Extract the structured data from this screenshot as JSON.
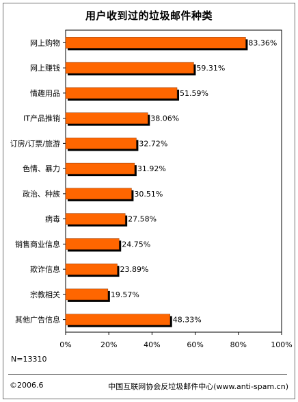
{
  "footer": {
    "sample": "N=13310",
    "copyright": "©2006.6",
    "source": "中国互联网协会反垃圾邮件中心(www.anti-spam.cn)"
  },
  "chart_data": {
    "type": "bar",
    "orientation": "horizontal",
    "title": "用户收到过的垃圾邮件种类",
    "categories": [
      "网上购物",
      "网上赚钱",
      "情趣用品",
      "IT产品推销",
      "订房/订票/旅游",
      "色情、暴力",
      "政治、种族",
      "病毒",
      "销售商业信息",
      "欺诈信息",
      "宗教相关",
      "其他广告信息"
    ],
    "values": [
      83.36,
      59.31,
      51.59,
      38.06,
      32.72,
      31.92,
      30.51,
      27.58,
      24.75,
      23.89,
      19.57,
      48.33
    ],
    "value_labels": [
      "83.36%",
      "59.31%",
      "51.59%",
      "38.06%",
      "32.72%",
      "31.92%",
      "30.51%",
      "27.58%",
      "24.75%",
      "23.89%",
      "19.57%",
      "48.33%"
    ],
    "xlim": [
      0,
      100
    ],
    "xticks": [
      "0%",
      "20%",
      "40%",
      "60%",
      "80%",
      "100%"
    ],
    "xtick_values": [
      0,
      20,
      40,
      60,
      80,
      100
    ],
    "grid": false,
    "bar_color": "#ff6600",
    "bar_shadow_color": "#000000"
  }
}
